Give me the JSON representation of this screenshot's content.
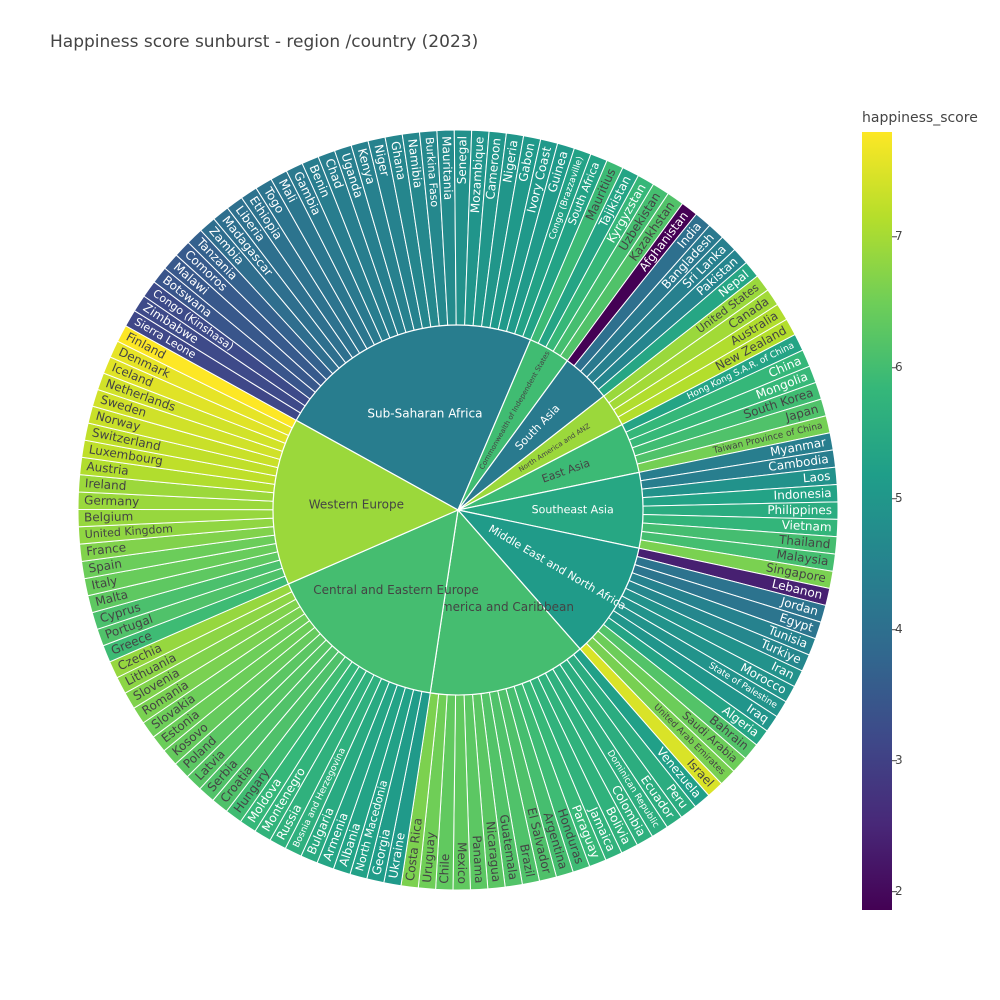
{
  "chart_data": {
    "type": "sunburst",
    "title": "Happiness score sunburst - region /country (2023)",
    "colorbar": {
      "title": "happiness_score",
      "range": [
        1.86,
        7.8
      ],
      "ticks": [
        "2",
        "3",
        "4",
        "5",
        "6",
        "7"
      ],
      "tick_values": [
        2,
        3,
        4,
        5,
        6,
        7
      ],
      "colorscale": "viridis"
    },
    "regions": [
      {
        "name": "Sub-Saharan Africa",
        "score": 4.38,
        "countries": [
          {
            "name": "Sierra Leone",
            "score": 3.14
          },
          {
            "name": "Zimbabwe",
            "score": 3.2
          },
          {
            "name": "Congo (Kinshasa)",
            "score": 3.21
          },
          {
            "name": "Botswana",
            "score": 3.44
          },
          {
            "name": "Malawi",
            "score": 3.5
          },
          {
            "name": "Comoros",
            "score": 3.55
          },
          {
            "name": "Tanzania",
            "score": 3.69
          },
          {
            "name": "Zambia",
            "score": 3.98
          },
          {
            "name": "Madagascar",
            "score": 4.02
          },
          {
            "name": "Liberia",
            "score": 4.04
          },
          {
            "name": "Ethiopia",
            "score": 4.09
          },
          {
            "name": "Togo",
            "score": 4.14
          },
          {
            "name": "Mali",
            "score": 4.2
          },
          {
            "name": "Gambia",
            "score": 4.28
          },
          {
            "name": "Benin",
            "score": 4.37
          },
          {
            "name": "Chad",
            "score": 4.4
          },
          {
            "name": "Uganda",
            "score": 4.43
          },
          {
            "name": "Kenya",
            "score": 4.47
          },
          {
            "name": "Niger",
            "score": 4.5
          },
          {
            "name": "Ghana",
            "score": 4.6
          },
          {
            "name": "Namibia",
            "score": 4.63
          },
          {
            "name": "Burkina Faso",
            "score": 4.64
          },
          {
            "name": "Mauritania",
            "score": 4.72
          },
          {
            "name": "Senegal",
            "score": 4.86
          },
          {
            "name": "Mozambique",
            "score": 4.95
          },
          {
            "name": "Cameroon",
            "score": 4.97
          },
          {
            "name": "Nigeria",
            "score": 4.98
          },
          {
            "name": "Gabon",
            "score": 5.04
          },
          {
            "name": "Ivory Coast",
            "score": 5.05
          },
          {
            "name": "Guinea",
            "score": 5.07
          },
          {
            "name": "Congo (Brazzaville)",
            "score": 5.27
          },
          {
            "name": "South Africa",
            "score": 5.28
          }
        ]
      },
      {
        "name": "Commonwealth of Independent States",
        "score": 5.95,
        "countries": [
          {
            "name": "Mauritius",
            "score": 5.9
          },
          {
            "name": "Tajikistan",
            "score": 5.33
          },
          {
            "name": "Kyrgyzstan",
            "score": 5.83
          },
          {
            "name": "Uzbekistan",
            "score": 6.01
          },
          {
            "name": "Kazakhstan",
            "score": 6.14
          }
        ]
      },
      {
        "name": "South Asia",
        "score": 4.3,
        "countries": [
          {
            "name": "Afghanistan",
            "score": 1.86
          },
          {
            "name": "India",
            "score": 4.04
          },
          {
            "name": "Bangladesh",
            "score": 4.28
          },
          {
            "name": "Sri Lanka",
            "score": 4.44
          },
          {
            "name": "Pakistan",
            "score": 4.56
          },
          {
            "name": "Nepal",
            "score": 5.36
          }
        ]
      },
      {
        "name": "North America and ANZ",
        "score": 6.9,
        "countries": [
          {
            "name": "United States",
            "score": 6.89
          },
          {
            "name": "Canada",
            "score": 6.96
          },
          {
            "name": "Australia",
            "score": 7.1
          },
          {
            "name": "New Zealand",
            "score": 7.12
          }
        ]
      },
      {
        "name": "East Asia",
        "score": 5.9,
        "countries": [
          {
            "name": "Hong Kong S.A.R. of China",
            "score": 5.31
          },
          {
            "name": "China",
            "score": 5.82
          },
          {
            "name": "Mongolia",
            "score": 5.84
          },
          {
            "name": "South Korea",
            "score": 5.95
          },
          {
            "name": "Japan",
            "score": 6.13
          },
          {
            "name": "Taiwan Province of China",
            "score": 6.54
          }
        ]
      },
      {
        "name": "Southeast Asia",
        "score": 5.4,
        "countries": [
          {
            "name": "Myanmar",
            "score": 4.39
          },
          {
            "name": "Cambodia",
            "score": 4.39
          },
          {
            "name": "Laos",
            "score": 4.88
          },
          {
            "name": "Indonesia",
            "score": 5.28
          },
          {
            "name": "Philippines",
            "score": 5.52
          },
          {
            "name": "Vietnam",
            "score": 5.76
          },
          {
            "name": "Thailand",
            "score": 6.0
          },
          {
            "name": "Malaysia",
            "score": 6.01
          },
          {
            "name": "Singapore",
            "score": 6.59
          }
        ]
      },
      {
        "name": "Middle East and North Africa",
        "score": 5.1,
        "countries": [
          {
            "name": "Lebanon",
            "score": 2.39
          },
          {
            "name": "Jordan",
            "score": 4.12
          },
          {
            "name": "Egypt",
            "score": 4.17
          },
          {
            "name": "Tunisia",
            "score": 4.5
          },
          {
            "name": "Turkiye",
            "score": 4.61
          },
          {
            "name": "Iran",
            "score": 4.88
          },
          {
            "name": "Morocco",
            "score": 4.9
          },
          {
            "name": "State of Palestine",
            "score": 4.91
          },
          {
            "name": "Iraq",
            "score": 4.94
          },
          {
            "name": "Algeria",
            "score": 5.33
          },
          {
            "name": "Bahrain",
            "score": 6.17
          },
          {
            "name": "Saudi Arabia",
            "score": 6.46
          },
          {
            "name": "United Arab Emirates",
            "score": 6.57
          },
          {
            "name": "Israel",
            "score": 7.47
          }
        ]
      },
      {
        "name": "Latin America and Caribbean",
        "score": 6.0,
        "countries": [
          {
            "name": "Venezuela",
            "score": 5.21
          },
          {
            "name": "Peru",
            "score": 5.53
          },
          {
            "name": "Ecuador",
            "score": 5.56
          },
          {
            "name": "Dominican Republic",
            "score": 5.57
          },
          {
            "name": "Colombia",
            "score": 5.63
          },
          {
            "name": "Bolivia",
            "score": 5.68
          },
          {
            "name": "Jamaica",
            "score": 5.7
          },
          {
            "name": "Paraguay",
            "score": 5.84
          },
          {
            "name": "Honduras",
            "score": 5.93
          },
          {
            "name": "Argentina",
            "score": 6.02
          },
          {
            "name": "El Salvador",
            "score": 6.12
          },
          {
            "name": "Brazil",
            "score": 6.13
          },
          {
            "name": "Guatemala",
            "score": 6.15
          },
          {
            "name": "Nicaragua",
            "score": 6.26
          },
          {
            "name": "Panama",
            "score": 6.27
          },
          {
            "name": "Mexico",
            "score": 6.33
          },
          {
            "name": "Chile",
            "score": 6.33
          },
          {
            "name": "Uruguay",
            "score": 6.49
          },
          {
            "name": "Costa Rica",
            "score": 6.61
          }
        ]
      },
      {
        "name": "Central and Eastern Europe",
        "score": 6.0,
        "countries": [
          {
            "name": "Ukraine",
            "score": 5.07
          },
          {
            "name": "Georgia",
            "score": 5.11
          },
          {
            "name": "North Macedonia",
            "score": 5.25
          },
          {
            "name": "Albania",
            "score": 5.28
          },
          {
            "name": "Armenia",
            "score": 5.34
          },
          {
            "name": "Bulgaria",
            "score": 5.47
          },
          {
            "name": "Bosnia and Herzegovina",
            "score": 5.63
          },
          {
            "name": "Russia",
            "score": 5.66
          },
          {
            "name": "Montenegro",
            "score": 5.72
          },
          {
            "name": "Moldova",
            "score": 5.82
          },
          {
            "name": "Hungary",
            "score": 5.95
          },
          {
            "name": "Croatia",
            "score": 6.12
          },
          {
            "name": "Serbia",
            "score": 6.14
          },
          {
            "name": "Latvia",
            "score": 6.21
          },
          {
            "name": "Poland",
            "score": 6.26
          },
          {
            "name": "Kosovo",
            "score": 6.37
          },
          {
            "name": "Estonia",
            "score": 6.45
          },
          {
            "name": "Slovakia",
            "score": 6.47
          },
          {
            "name": "Romania",
            "score": 6.59
          },
          {
            "name": "Slovenia",
            "score": 6.65
          },
          {
            "name": "Lithuania",
            "score": 6.76
          },
          {
            "name": "Czechia",
            "score": 6.85
          }
        ]
      },
      {
        "name": "Western Europe",
        "score": 6.9,
        "countries": [
          {
            "name": "Greece",
            "score": 5.93
          },
          {
            "name": "Portugal",
            "score": 6.13
          },
          {
            "name": "Cyprus",
            "score": 6.07
          },
          {
            "name": "Malta",
            "score": 6.3
          },
          {
            "name": "Italy",
            "score": 6.41
          },
          {
            "name": "Spain",
            "score": 6.44
          },
          {
            "name": "France",
            "score": 6.66
          },
          {
            "name": "United Kingdom",
            "score": 6.8
          },
          {
            "name": "Belgium",
            "score": 6.86
          },
          {
            "name": "Germany",
            "score": 6.89
          },
          {
            "name": "Ireland",
            "score": 6.91
          },
          {
            "name": "Austria",
            "score": 7.1
          },
          {
            "name": "Luxembourg",
            "score": 7.23
          },
          {
            "name": "Switzerland",
            "score": 7.24
          },
          {
            "name": "Norway",
            "score": 7.32
          },
          {
            "name": "Sweden",
            "score": 7.39
          },
          {
            "name": "Netherlands",
            "score": 7.4
          },
          {
            "name": "Iceland",
            "score": 7.53
          },
          {
            "name": "Denmark",
            "score": 7.59
          },
          {
            "name": "Finland",
            "score": 7.8
          }
        ]
      }
    ]
  }
}
